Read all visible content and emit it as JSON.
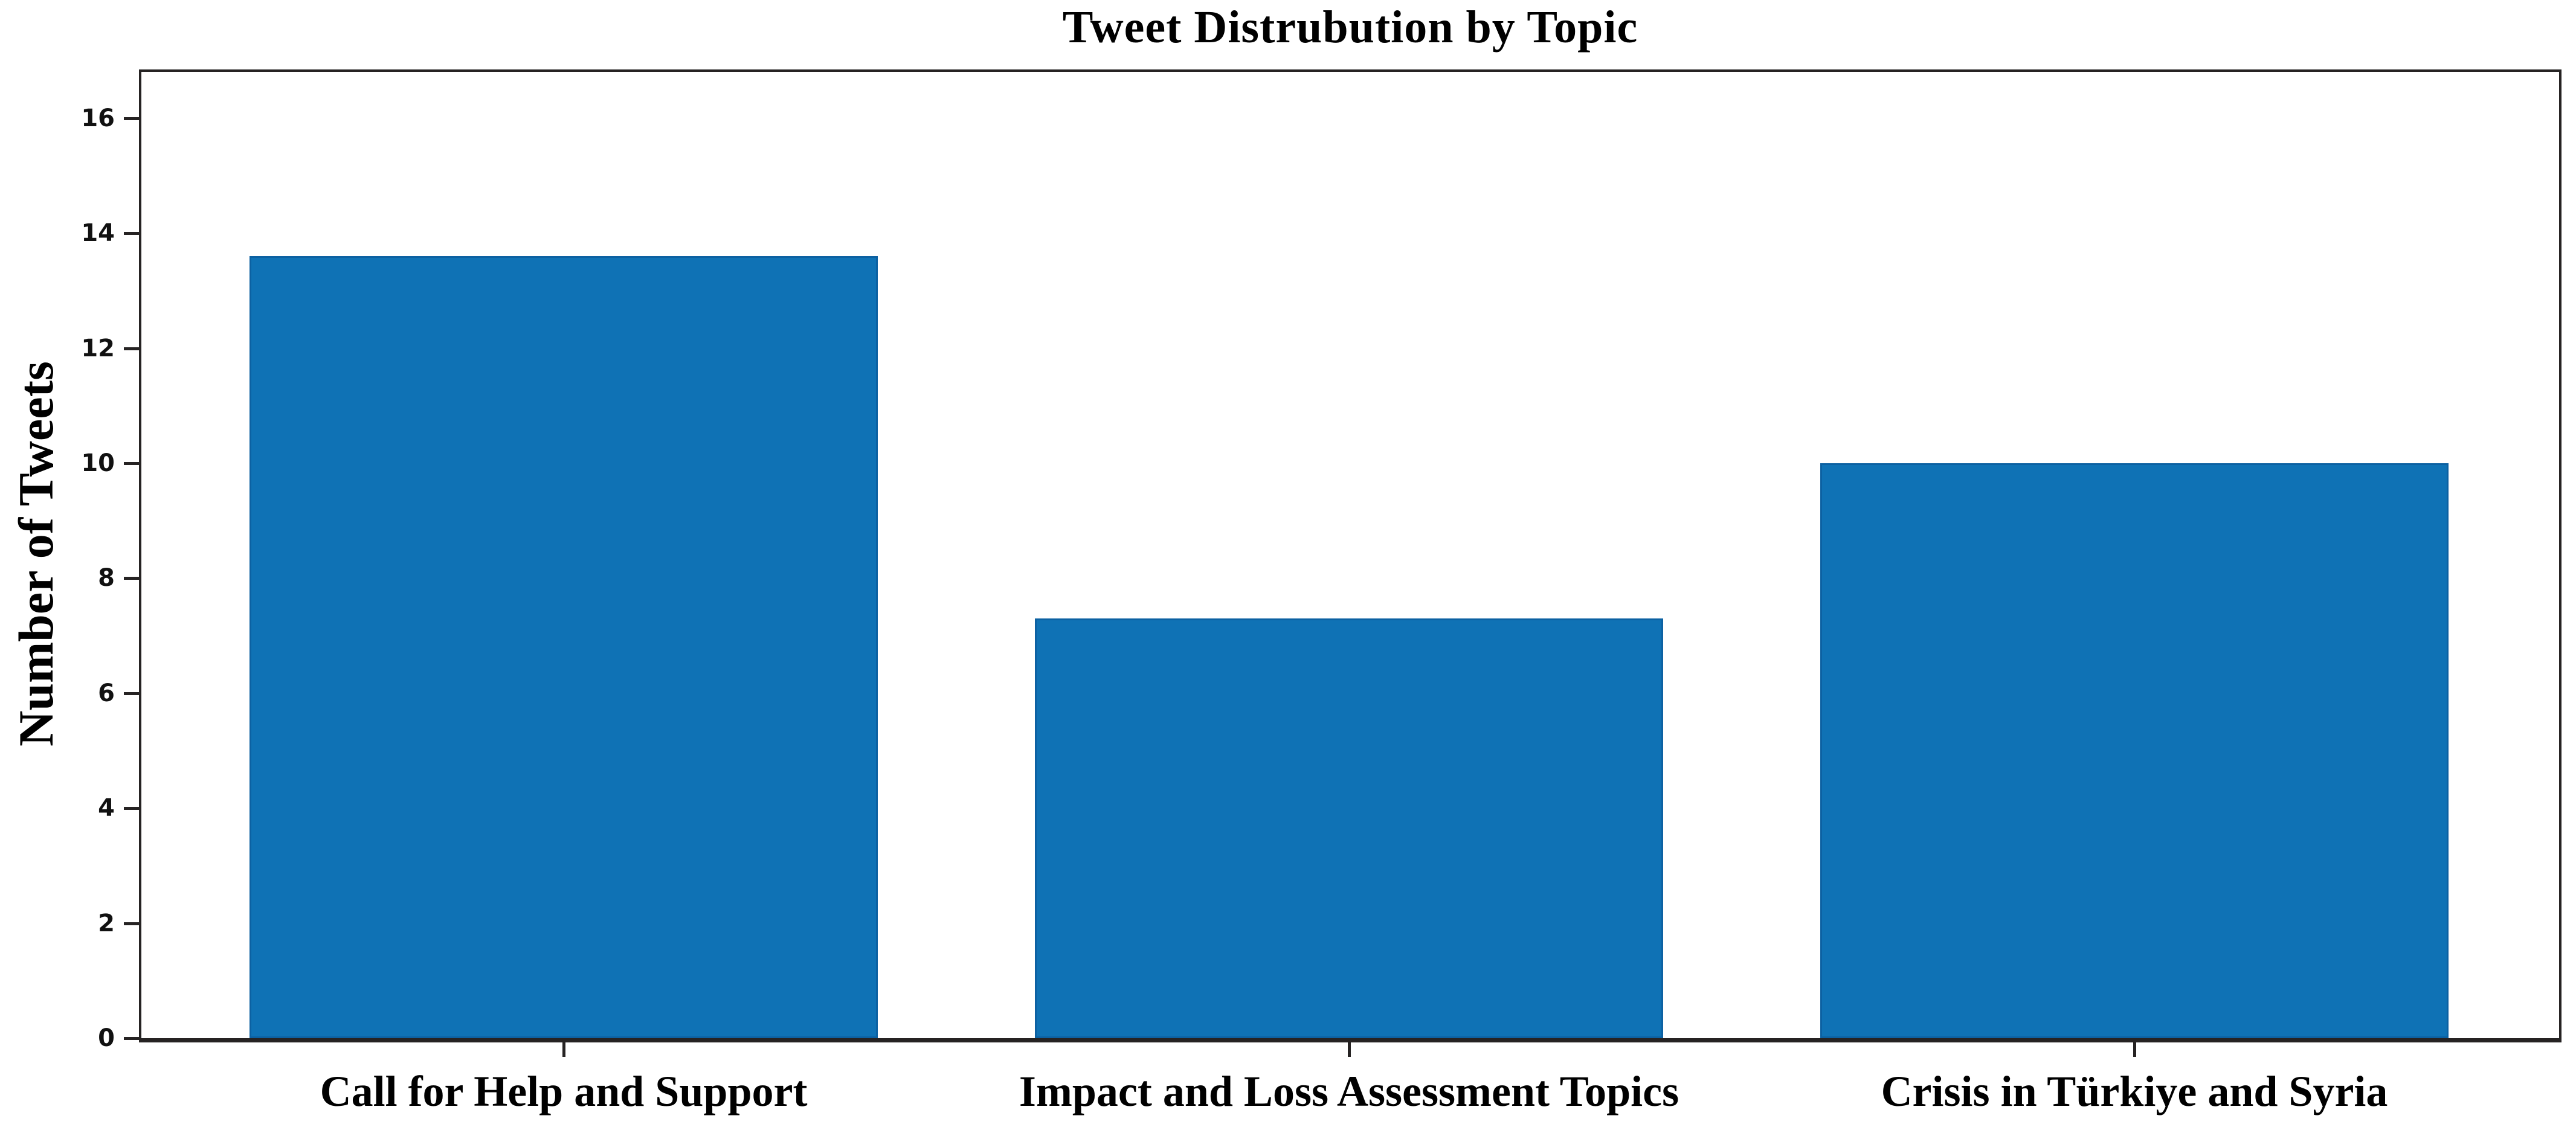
{
  "chart_data": {
    "type": "bar",
    "title": "Tweet Distrubution by Topic",
    "ylabel": "Number of Tweets",
    "xlabel": "",
    "categories": [
      "Call for Help and Support",
      "Impact and Loss Assessment Topics",
      "Crisis in Türkiye and Syria"
    ],
    "values": [
      13.6,
      7.3,
      10.0
    ],
    "yticks": [
      0,
      2,
      4,
      6,
      8,
      10,
      12,
      14,
      16
    ],
    "ylim": [
      0,
      16.85
    ],
    "grid": false,
    "legend": null,
    "bar_color": "#0f72b5",
    "axis_color": "#262323",
    "text_color": "#000000",
    "background_color": "#ffffff"
  }
}
